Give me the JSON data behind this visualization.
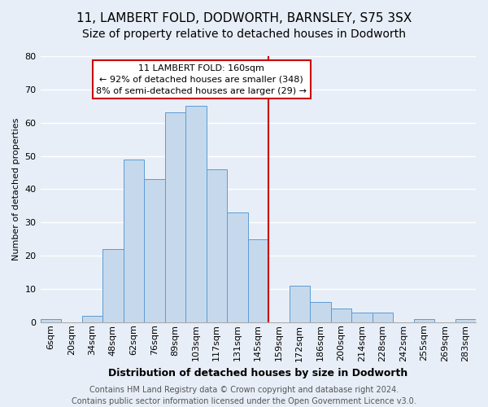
{
  "title": "11, LAMBERT FOLD, DODWORTH, BARNSLEY, S75 3SX",
  "subtitle": "Size of property relative to detached houses in Dodworth",
  "xlabel": "Distribution of detached houses by size in Dodworth",
  "ylabel": "Number of detached properties",
  "bar_labels": [
    "6sqm",
    "20sqm",
    "34sqm",
    "48sqm",
    "62sqm",
    "76sqm",
    "89sqm",
    "103sqm",
    "117sqm",
    "131sqm",
    "145sqm",
    "159sqm",
    "172sqm",
    "186sqm",
    "200sqm",
    "214sqm",
    "228sqm",
    "242sqm",
    "255sqm",
    "269sqm",
    "283sqm"
  ],
  "bar_values": [
    1,
    0,
    2,
    22,
    49,
    43,
    63,
    65,
    46,
    33,
    25,
    0,
    11,
    6,
    4,
    3,
    3,
    0,
    1,
    0,
    1
  ],
  "bar_color": "#c6d9ec",
  "bar_edgecolor": "#5b9bd5",
  "vline_color": "#cc0000",
  "annotation_title": "11 LAMBERT FOLD: 160sqm",
  "annotation_line1": "← 92% of detached houses are smaller (348)",
  "annotation_line2": "8% of semi-detached houses are larger (29) →",
  "annotation_box_edgecolor": "#cc0000",
  "ylim": [
    0,
    80
  ],
  "yticks": [
    0,
    10,
    20,
    30,
    40,
    50,
    60,
    70,
    80
  ],
  "footer1": "Contains HM Land Registry data © Crown copyright and database right 2024.",
  "footer2": "Contains public sector information licensed under the Open Government Licence v3.0.",
  "bg_color": "#e8eef7",
  "plot_bg_color": "#e8eef7",
  "grid_color": "#ffffff",
  "title_fontsize": 11,
  "subtitle_fontsize": 10,
  "xlabel_fontsize": 9,
  "ylabel_fontsize": 8,
  "tick_fontsize": 8,
  "annot_fontsize": 8,
  "footer_fontsize": 7
}
